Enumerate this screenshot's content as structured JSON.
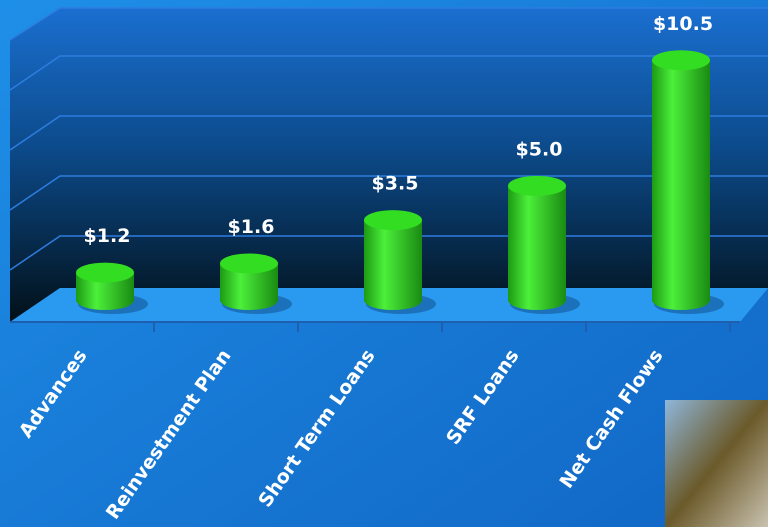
{
  "chart_data": {
    "type": "bar",
    "categories": [
      "Advances",
      "Reinvestment Plan",
      "Short Term Loans",
      "SRF Loans",
      "Net Cash Flows"
    ],
    "values": [
      1.2,
      1.6,
      3.5,
      5.0,
      10.5
    ],
    "value_labels": [
      "$1.2",
      "$1.6",
      "$3.5",
      "$5.0",
      "$10.5"
    ],
    "color": "#33dd22",
    "ylim": [
      0,
      12
    ]
  }
}
